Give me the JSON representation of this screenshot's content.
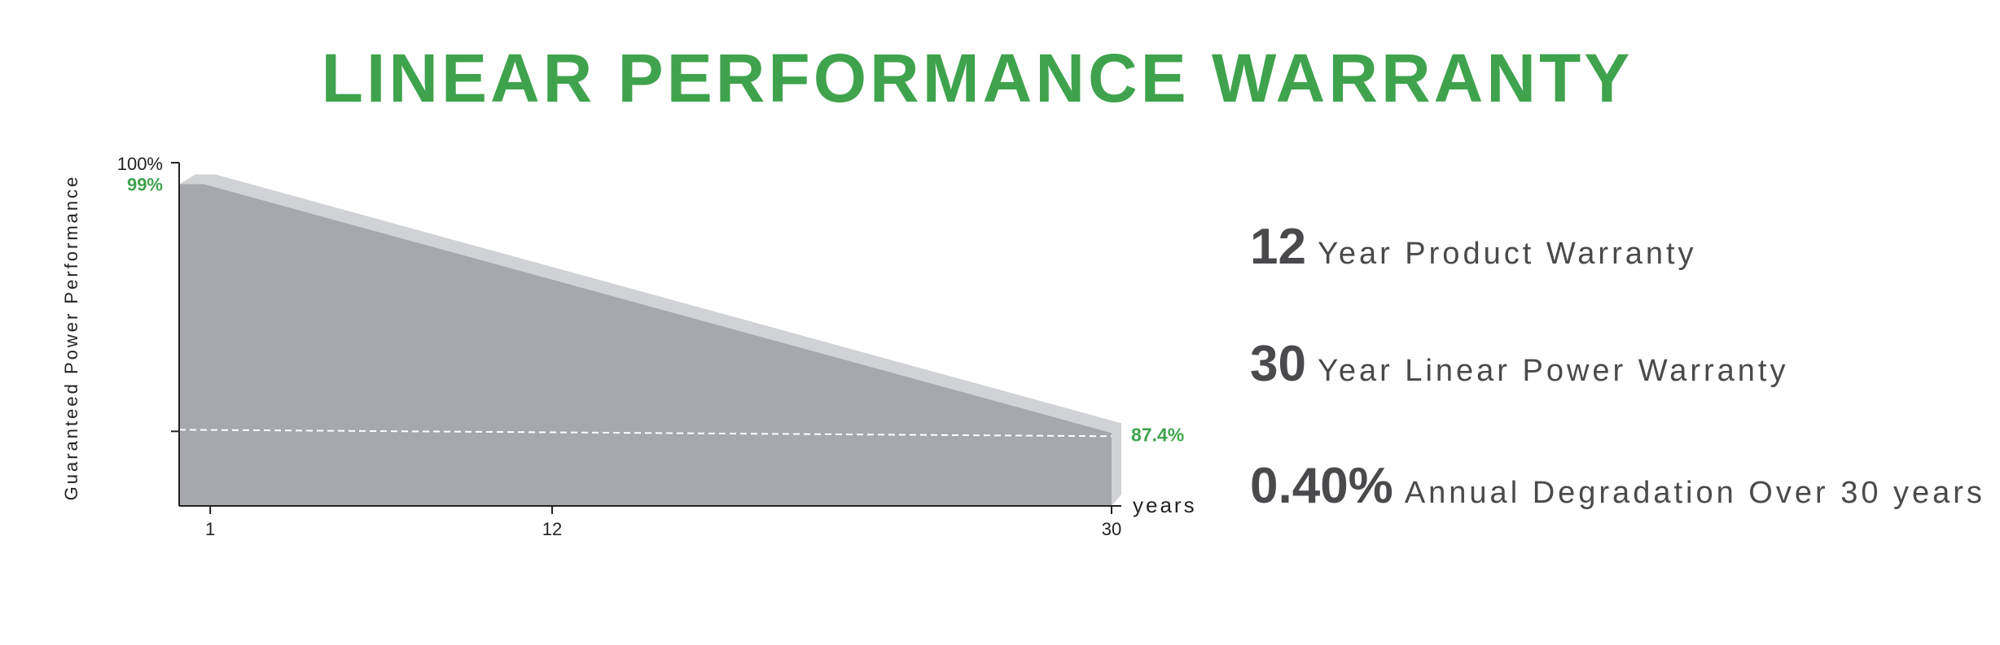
{
  "title": "LINEAR PERFORMANCE WARRANTY",
  "colors": {
    "accent": "#3fa34d",
    "area": "#a6a8ae",
    "area_top": "#d1d2d5",
    "axis": "#222222",
    "stat_text": "#4a4a4d"
  },
  "chart_data": {
    "type": "area",
    "ylabel": "Guaranteed Power Performance",
    "xlabel": "years",
    "x_ticks": [
      "1",
      "12",
      "30"
    ],
    "y_tick_labels": [
      "100%",
      "99%"
    ],
    "x": [
      1,
      30
    ],
    "y": [
      99,
      87.4
    ],
    "start_label": "99%",
    "end_label": "87.4%",
    "reference_line": 87.4,
    "xlim": [
      0,
      30
    ],
    "ylim": [
      84,
      100
    ],
    "grid": false
  },
  "stats": [
    {
      "number": "12",
      "text": "Year Product Warranty"
    },
    {
      "number": "30",
      "text": "Year Linear Power Warranty"
    },
    {
      "number": "0.40%",
      "text": "Annual Degradation Over 30 years"
    }
  ]
}
